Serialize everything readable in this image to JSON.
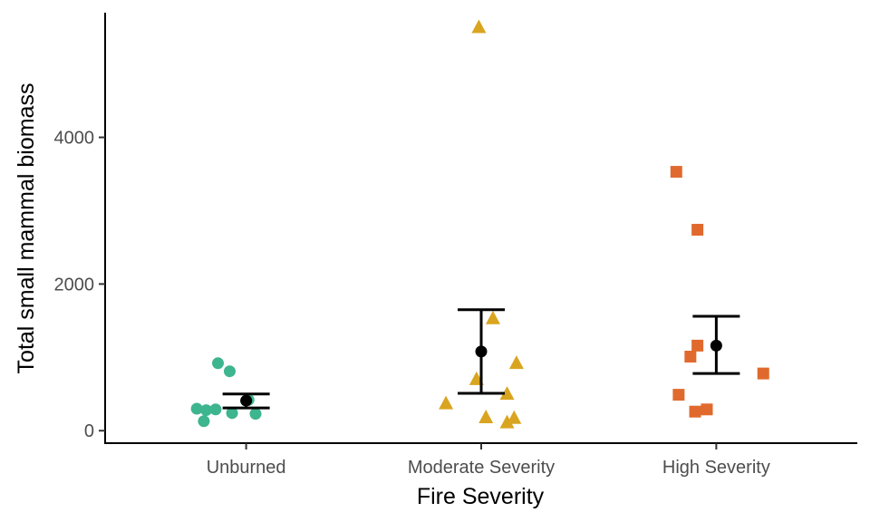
{
  "chart_data": {
    "type": "scatter",
    "xlabel": "Fire Severity",
    "ylabel": "Total small mammal biomass",
    "categories": [
      "Unburned",
      "Moderate Severity",
      "High Severity"
    ],
    "ylim": [
      -170,
      5700
    ],
    "yticks": [
      0,
      2000,
      4000
    ],
    "ytick_labels": [
      "0",
      "2000",
      "4000"
    ],
    "grid": false,
    "legend": "none",
    "series": [
      {
        "category": "Unburned",
        "color": "#3DB58F",
        "marker": "circle",
        "points": [
          {
            "jitter": -0.12,
            "y": 920
          },
          {
            "jitter": -0.07,
            "y": 810
          },
          {
            "jitter": 0.01,
            "y": 420
          },
          {
            "jitter": -0.21,
            "y": 300
          },
          {
            "jitter": -0.17,
            "y": 280
          },
          {
            "jitter": -0.13,
            "y": 290
          },
          {
            "jitter": -0.06,
            "y": 240
          },
          {
            "jitter": 0.04,
            "y": 230
          },
          {
            "jitter": -0.18,
            "y": 130
          }
        ],
        "mean": 410,
        "error": [
          310,
          500
        ]
      },
      {
        "category": "Moderate Severity",
        "color": "#D9A520",
        "marker": "triangle",
        "points": [
          {
            "jitter": -0.01,
            "y": 5500
          },
          {
            "jitter": 0.05,
            "y": 1530
          },
          {
            "jitter": 0.15,
            "y": 920
          },
          {
            "jitter": -0.02,
            "y": 700
          },
          {
            "jitter": 0.11,
            "y": 500
          },
          {
            "jitter": -0.15,
            "y": 370
          },
          {
            "jitter": 0.02,
            "y": 180
          },
          {
            "jitter": 0.14,
            "y": 170
          },
          {
            "jitter": 0.11,
            "y": 110
          }
        ],
        "mean": 1080,
        "error": [
          510,
          1650
        ]
      },
      {
        "category": "High Severity",
        "color": "#E06A2E",
        "marker": "square",
        "points": [
          {
            "jitter": -0.17,
            "y": 3530
          },
          {
            "jitter": -0.08,
            "y": 2740
          },
          {
            "jitter": -0.08,
            "y": 1160
          },
          {
            "jitter": -0.11,
            "y": 1010
          },
          {
            "jitter": 0.2,
            "y": 780
          },
          {
            "jitter": -0.16,
            "y": 490
          },
          {
            "jitter": -0.04,
            "y": 290
          },
          {
            "jitter": -0.09,
            "y": 260
          }
        ],
        "mean": 1160,
        "error": [
          780,
          1560
        ]
      }
    ]
  }
}
